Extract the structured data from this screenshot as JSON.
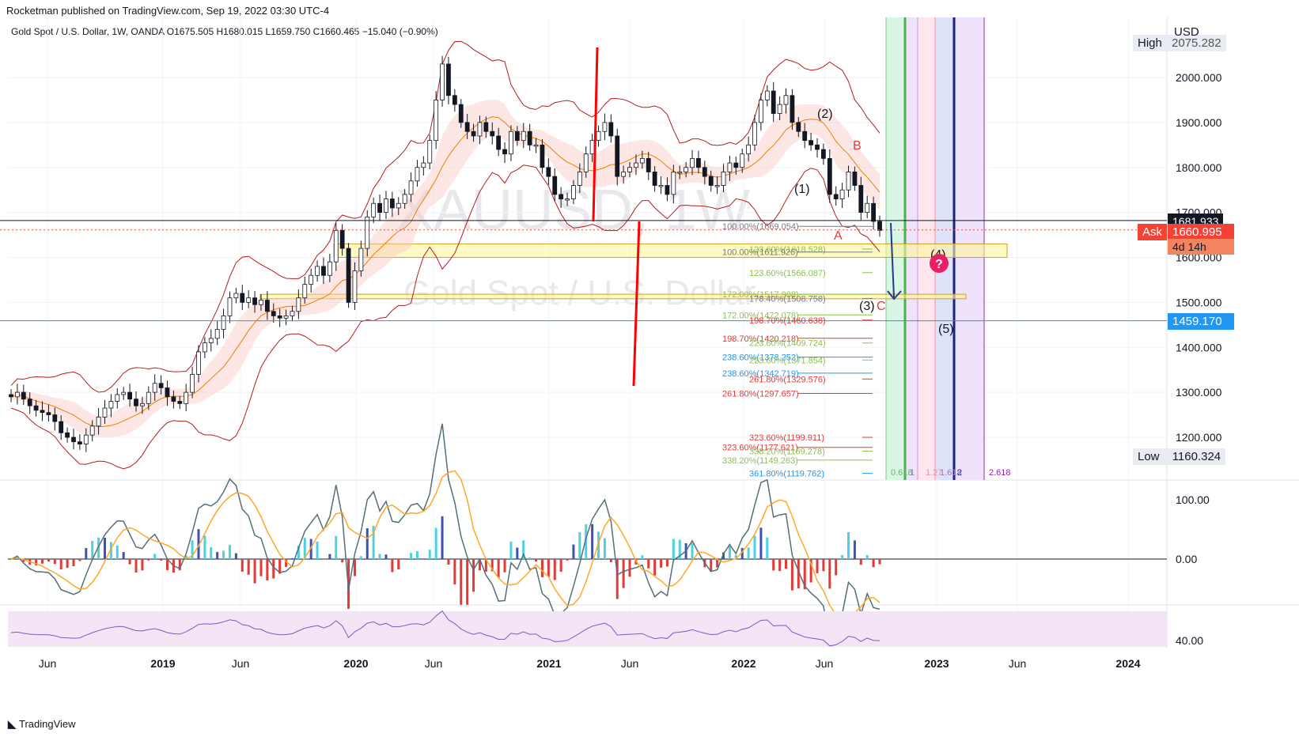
{
  "header": {
    "published": "Rocketman published on TradingView.com, Sep 19, 2022 03:30 UTC-4",
    "legend": "Gold Spot / U.S. Dollar, 1W, OANDA",
    "open": "O1675.505",
    "high": "H1680.015",
    "low": "L1659.750",
    "close": "C1660.465",
    "change": "−15.040 (−0.90%)"
  },
  "watermark": {
    "symbol": "XAUUSD, 1W",
    "name": "Gold Spot / U.S. Dollar"
  },
  "badges": {
    "high_label": "High",
    "high_value": "2075.282",
    "currency": "USD",
    "last_value": "1681.933",
    "ask_label": "Ask",
    "ask_value": "1660.995",
    "countdown": "4d 14h",
    "line_value": "1459.170",
    "low_label": "Low",
    "low_value": "1160.324"
  },
  "footer": {
    "brand": "TradingView"
  },
  "chart_data": {
    "type": "candlestick",
    "title": "Gold Spot / U.S. Dollar, 1W, OANDA",
    "y_axis": {
      "ticks": [
        "2000.000",
        "1900.000",
        "1800.000",
        "1700.000",
        "1600.000",
        "1500.000",
        "1400.000",
        "1300.000",
        "1200.000"
      ],
      "range": [
        1100,
        2110
      ]
    },
    "x_axis": {
      "ticks": [
        "Jun",
        "2019",
        "Jun",
        "2020",
        "Jun",
        "2021",
        "Jun",
        "2022",
        "Jun",
        "2023",
        "Jun",
        "2024"
      ],
      "bold": [
        false,
        true,
        false,
        true,
        false,
        true,
        false,
        true,
        false,
        true,
        false,
        true
      ]
    },
    "price_series_weekly_close": [
      1290,
      1300,
      1285,
      1270,
      1260,
      1255,
      1250,
      1235,
      1210,
      1200,
      1190,
      1185,
      1205,
      1225,
      1245,
      1265,
      1280,
      1295,
      1300,
      1285,
      1270,
      1275,
      1300,
      1320,
      1310,
      1290,
      1280,
      1275,
      1300,
      1340,
      1390,
      1410,
      1420,
      1440,
      1470,
      1510,
      1520,
      1500,
      1510,
      1495,
      1505,
      1480,
      1470,
      1465,
      1470,
      1480,
      1510,
      1540,
      1560,
      1580,
      1560,
      1590,
      1660,
      1620,
      1500,
      1570,
      1620,
      1690,
      1720,
      1700,
      1730,
      1710,
      1720,
      1740,
      1770,
      1800,
      1810,
      1860,
      1950,
      2030,
      1960,
      1940,
      1900,
      1880,
      1870,
      1900,
      1880,
      1870,
      1840,
      1830,
      1880,
      1860,
      1880,
      1850,
      1850,
      1800,
      1780,
      1740,
      1730,
      1730,
      1760,
      1790,
      1830,
      1860,
      1880,
      1900,
      1870,
      1780,
      1790,
      1800,
      1810,
      1820,
      1790,
      1760,
      1760,
      1740,
      1790,
      1790,
      1800,
      1820,
      1800,
      1780,
      1760,
      1760,
      1790,
      1810,
      1800,
      1830,
      1850,
      1900,
      1950,
      1970,
      1920,
      1940,
      1960,
      1900,
      1880,
      1860,
      1850,
      1840,
      1820,
      1740,
      1730,
      1750,
      1790,
      1760,
      1700,
      1720,
      1680,
      1660
    ],
    "bollinger": {
      "upper_ref": [
        2090,
        1950,
        1920,
        2080,
        1900
      ],
      "lower_ref": [
        1420,
        1520,
        1700,
        1700,
        1640
      ]
    },
    "horizontal_levels": [
      {
        "name": "last",
        "value": 1681.933,
        "color": "#131722"
      },
      {
        "name": "support",
        "value": 1459.17,
        "color": "#2196f3"
      },
      {
        "name": "ask",
        "value": 1660.995,
        "color": "#f44336"
      }
    ],
    "zones": [
      {
        "from": 1600,
        "to": 1630,
        "color": "#fff59d"
      },
      {
        "from": 1508,
        "to": 1518,
        "color": "#fff59d"
      }
    ],
    "fib_levels": [
      {
        "label": "100.00%(1669.054)",
        "value": 1669.054,
        "color": "#787b86"
      },
      {
        "label": "123.60%(1618.528)",
        "value": 1618.528,
        "color": "#8bc34a"
      },
      {
        "label": "100.00%(1611.926)",
        "value": 1611.926,
        "color": "#787b86"
      },
      {
        "label": "123.60%(1566.087)",
        "value": 1566.087,
        "color": "#8bc34a"
      },
      {
        "label": "172.00%(1517.988)",
        "value": 1517.988,
        "color": "#8bc34a"
      },
      {
        "label": "178.40%(1508.758)",
        "value": 1508.758,
        "color": "#787b86"
      },
      {
        "label": "172.00%(1472.078)",
        "value": 1472.078,
        "color": "#8bc34a"
      },
      {
        "label": "198.70%(1460.638)",
        "value": 1460.638,
        "color": "#e53935"
      },
      {
        "label": "198.70%(1420.218)",
        "value": 1420.218,
        "color": "#e53935"
      },
      {
        "label": "223.60%(1409.724)",
        "value": 1409.724,
        "color": "#8bc34a"
      },
      {
        "label": "238.60%(1378.252)",
        "value": 1378.252,
        "color": "#2196f3"
      },
      {
        "label": "223.60%(1371.854)",
        "value": 1371.854,
        "color": "#8bc34a"
      },
      {
        "label": "238.60%(1342.719)",
        "value": 1342.719,
        "color": "#2196f3"
      },
      {
        "label": "261.80%(1329.576)",
        "value": 1329.576,
        "color": "#e53935"
      },
      {
        "label": "261.80%(1297.657)",
        "value": 1297.657,
        "color": "#e53935"
      },
      {
        "label": "323.60%(1199.911)",
        "value": 1199.911,
        "color": "#e53935"
      },
      {
        "label": "323.60%(1177.621)",
        "value": 1177.621,
        "color": "#e53935"
      },
      {
        "label": "338.20%(1169.278)",
        "value": 1169.278,
        "color": "#8bc34a"
      },
      {
        "label": "338.20%(1149.263)",
        "value": 1149.263,
        "color": "#8bc34a"
      },
      {
        "label": "361.80%(1119.762)",
        "value": 1119.762,
        "color": "#2196f3"
      }
    ],
    "fib_time_labels": [
      "0.618",
      "1",
      "1.27",
      "1.618",
      "2",
      "2.618"
    ],
    "wave_labels": [
      "(1)",
      "(2)",
      "(3)",
      "(4)",
      "(5)",
      "A",
      "B",
      "C"
    ],
    "oscillator": {
      "ticks": [
        "100.00",
        "0.00"
      ]
    },
    "rsi": {
      "ticks": [
        "40.00"
      ]
    }
  }
}
